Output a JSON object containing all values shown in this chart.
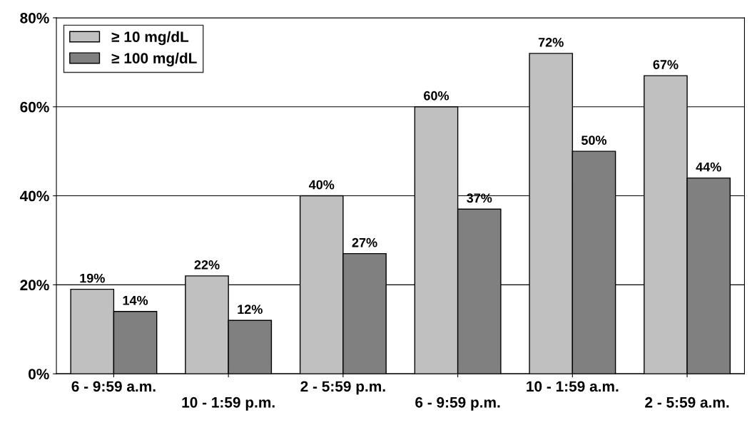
{
  "chart_data": {
    "type": "bar",
    "categories": [
      "6 - 9:59 a.m.",
      "10 - 1:59 p.m.",
      "2 - 5:59 p.m.",
      "6 - 9:59 p.m.",
      "10 - 1:59 a.m.",
      "2 - 5:59 a.m."
    ],
    "series": [
      {
        "name": "≥ 10 mg/dL",
        "color": "#c0c0c0",
        "values": [
          19,
          22,
          40,
          60,
          72,
          67
        ],
        "value_labels": [
          "19%",
          "22%",
          "40%",
          "60%",
          "72%",
          "67%"
        ]
      },
      {
        "name": "≥ 100 mg/dL",
        "color": "#808080",
        "values": [
          14,
          12,
          27,
          37,
          50,
          44
        ],
        "value_labels": [
          "14%",
          "12%",
          "27%",
          "37%",
          "50%",
          "44%"
        ]
      }
    ],
    "ylim": [
      0,
      80
    ],
    "yticks": [
      {
        "value": 0,
        "label": "0%"
      },
      {
        "value": 20,
        "label": "20%"
      },
      {
        "value": 40,
        "label": "40%"
      },
      {
        "value": 60,
        "label": "60%"
      },
      {
        "value": 80,
        "label": "80%"
      }
    ],
    "grid": "y",
    "legend": "top left"
  }
}
